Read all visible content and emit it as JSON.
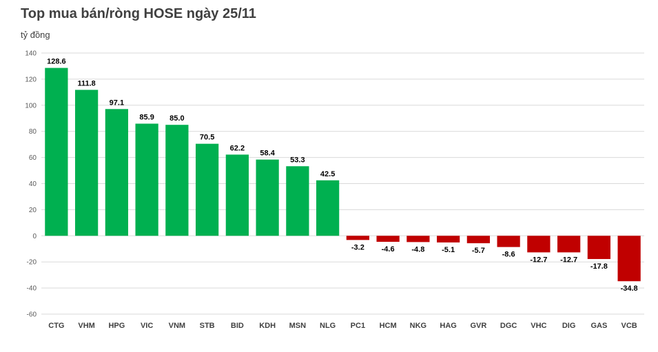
{
  "chart_data": {
    "type": "bar",
    "title": "Top mua bán/ròng HOSE ngày 25/11",
    "ylabel": "tỷ đồng",
    "xlabel": "",
    "ylim": [
      -60,
      140
    ],
    "yticks": [
      -60,
      -40,
      -20,
      0,
      20,
      40,
      60,
      80,
      100,
      120,
      140
    ],
    "grid": true,
    "categories": [
      "CTG",
      "VHM",
      "HPG",
      "VIC",
      "VNM",
      "STB",
      "BID",
      "KDH",
      "MSN",
      "NLG",
      "PC1",
      "HCM",
      "NKG",
      "HAG",
      "GVR",
      "DGC",
      "VHC",
      "DIG",
      "GAS",
      "VCB"
    ],
    "values": [
      128.6,
      111.8,
      97.1,
      85.9,
      85.0,
      70.5,
      62.2,
      58.4,
      53.3,
      42.5,
      -3.2,
      -4.6,
      -4.8,
      -5.1,
      -5.7,
      -8.6,
      -12.7,
      -12.7,
      -17.8,
      -34.8
    ],
    "value_labels": [
      "128.6",
      "111.8",
      "97.1",
      "85.9",
      "85.0",
      "70.5",
      "62.2",
      "58.4",
      "53.3",
      "42.5",
      "-3.2",
      "-4.6",
      "-4.8",
      "-5.1",
      "-5.7",
      "-8.6",
      "-12.7",
      "-12.7",
      "-17.8",
      "-34.8"
    ],
    "colors": {
      "positive": "#00B050",
      "negative": "#C00000",
      "grid": "#D9D9D9"
    }
  }
}
